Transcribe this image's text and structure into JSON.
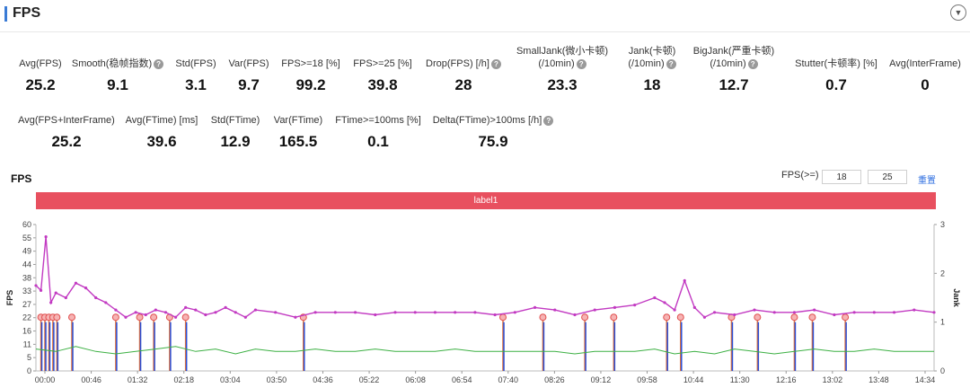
{
  "header": {
    "title": "FPS",
    "toggle_icon": "chevron-down-icon"
  },
  "metrics_row1": [
    {
      "label": "Avg(FPS)",
      "value": "25.2",
      "help": false
    },
    {
      "label": "Smooth(稳帧指数)",
      "value": "9.1",
      "help": true
    },
    {
      "label": "Std(FPS)",
      "value": "3.1",
      "help": false
    },
    {
      "label": "Var(FPS)",
      "value": "9.7",
      "help": false
    },
    {
      "label": "FPS>=18 [%]",
      "value": "99.2",
      "help": false
    },
    {
      "label": "FPS>=25 [%]",
      "value": "39.8",
      "help": false
    },
    {
      "label": "Drop(FPS) [/h]",
      "value": "28",
      "help": true
    },
    {
      "label": "SmallJank(微小卡顿)",
      "label2": "(/10min)",
      "value": "23.3",
      "help": true
    },
    {
      "label": "Jank(卡顿)",
      "label2": "(/10min)",
      "value": "18",
      "help": true
    },
    {
      "label": "BigJank(严重卡顿)",
      "label2": "(/10min)",
      "value": "12.7",
      "help": true
    },
    {
      "label": "Stutter(卡顿率) [%]",
      "value": "0.7",
      "help": false
    },
    {
      "label": "Avg(InterFrame)",
      "value": "0",
      "help": false
    }
  ],
  "metrics_row2": [
    {
      "label": "Avg(FPS+InterFrame)",
      "value": "25.2",
      "help": false
    },
    {
      "label": "Avg(FTime) [ms]",
      "value": "39.6",
      "help": false
    },
    {
      "label": "Std(FTime)",
      "value": "12.9",
      "help": false
    },
    {
      "label": "Var(FTime)",
      "value": "165.5",
      "help": false
    },
    {
      "label": "FTime>=100ms [%]",
      "value": "0.1",
      "help": false
    },
    {
      "label": "Delta(FTime)>100ms [/h]",
      "value": "75.9",
      "help": true
    }
  ],
  "chart_controls": {
    "title": "FPS",
    "filter_label": "FPS(>=)",
    "threshold_1": "18",
    "threshold_2": "25",
    "reset_label": "重置"
  },
  "label_bar": {
    "text": "label1"
  },
  "chart_data": {
    "type": "line",
    "ylabel": "FPS",
    "y2label": "Jank",
    "y_ticks": [
      "0",
      "5",
      "11",
      "16",
      "22",
      "27",
      "33",
      "38",
      "44",
      "49",
      "55",
      "60"
    ],
    "y2_ticks": [
      "0",
      "1",
      "2",
      "3"
    ],
    "x_ticks": [
      "00:00",
      "00:46",
      "01:32",
      "02:18",
      "03:04",
      "03:50",
      "04:36",
      "05:22",
      "06:08",
      "06:54",
      "07:40",
      "08:26",
      "09:12",
      "09:58",
      "10:44",
      "11:30",
      "12:16",
      "13:02",
      "13:48",
      "14:34"
    ],
    "ylim": [
      0,
      60
    ],
    "y2lim": [
      0,
      3
    ],
    "xlim_seconds": [
      0,
      900
    ],
    "series": [
      {
        "color": "#c23ac2",
        "x": [
          0,
          5,
          10,
          15,
          20,
          30,
          40,
          50,
          60,
          70,
          80,
          90,
          100,
          110,
          120,
          130,
          140,
          150,
          160,
          170,
          180,
          190,
          200,
          210,
          220,
          240,
          260,
          280,
          300,
          320,
          340,
          360,
          380,
          400,
          420,
          440,
          460,
          480,
          500,
          520,
          540,
          560,
          580,
          600,
          620,
          630,
          640,
          650,
          660,
          670,
          680,
          700,
          720,
          740,
          760,
          780,
          800,
          820,
          840,
          860,
          880,
          900
        ],
        "values": [
          35,
          33,
          55,
          28,
          32,
          30,
          36,
          34,
          30,
          28,
          25,
          22,
          24,
          23,
          25,
          24,
          22,
          26,
          25,
          23,
          24,
          26,
          24,
          22,
          25,
          24,
          22,
          24,
          24,
          24,
          23,
          24,
          24,
          24,
          24,
          24,
          23,
          24,
          26,
          25,
          23,
          25,
          26,
          27,
          30,
          28,
          25,
          37,
          26,
          22,
          24,
          23,
          25,
          24,
          24,
          25,
          23,
          24,
          24,
          24,
          25,
          24
        ]
      },
      {
        "color": "#3cb043",
        "x": [
          0,
          20,
          40,
          60,
          80,
          100,
          120,
          140,
          160,
          180,
          200,
          220,
          240,
          260,
          280,
          300,
          320,
          340,
          360,
          380,
          400,
          420,
          440,
          460,
          480,
          500,
          520,
          540,
          560,
          580,
          600,
          620,
          640,
          660,
          680,
          700,
          720,
          740,
          760,
          780,
          800,
          820,
          840,
          860,
          880,
          900
        ],
        "values": [
          9,
          8,
          10,
          8,
          7,
          8,
          9,
          10,
          8,
          9,
          7,
          9,
          8,
          8,
          9,
          8,
          8,
          9,
          8,
          8,
          8,
          9,
          8,
          8,
          8,
          8,
          8,
          7,
          8,
          8,
          8,
          9,
          7,
          8,
          7,
          9,
          8,
          7,
          8,
          9,
          8,
          8,
          9,
          8,
          8,
          8
        ]
      }
    ],
    "jank_points_seconds": [
      5,
      9,
      13,
      17,
      21,
      36,
      80,
      104,
      118,
      134,
      150,
      268,
      468,
      508,
      550,
      579,
      632,
      646,
      697,
      723,
      760,
      778,
      811
    ]
  }
}
